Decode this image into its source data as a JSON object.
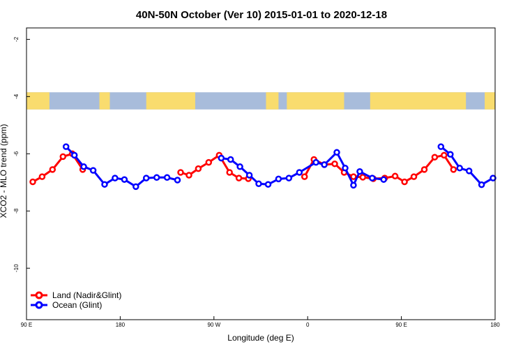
{
  "chart_data": {
    "type": "line",
    "title": "40N-50N October (Ver 10)   2015-01-01 to 2020-12-18",
    "xlabel": "Longitude (deg E)",
    "ylabel": "XCO2 - MLO trend (ppm)",
    "xlim": [
      90,
      540
    ],
    "ylim": [
      -11.8,
      -1.6
    ],
    "x_ticks": [
      {
        "value": 90,
        "label": "90 E"
      },
      {
        "value": 180,
        "label": "180"
      },
      {
        "value": 270,
        "label": "90 W"
      },
      {
        "value": 360,
        "label": "0"
      },
      {
        "value": 450,
        "label": "90 E"
      },
      {
        "value": 540,
        "label": "180"
      }
    ],
    "y_ticks": [
      {
        "value": -2,
        "label": "-2"
      },
      {
        "value": -4,
        "label": "-4"
      },
      {
        "value": -6,
        "label": "-6"
      },
      {
        "value": -8,
        "label": "-8"
      },
      {
        "value": -10,
        "label": "-10"
      }
    ],
    "map_band": {
      "y_top": -3.85,
      "y_bottom": -4.45,
      "land_color": "#f9dc6e",
      "ocean_color": "#a8bcdb"
    },
    "series": [
      {
        "name": "Land (Nadir&Glint)",
        "color": "#ff0000",
        "segments": [
          [
            [
              96,
              -6.98
            ],
            [
              105,
              -6.8
            ],
            [
              115,
              -6.55
            ],
            [
              125,
              -6.1
            ],
            [
              134,
              -6.0
            ],
            [
              144,
              -6.55
            ]
          ],
          [
            [
              238,
              -6.65
            ],
            [
              246,
              -6.75
            ],
            [
              255,
              -6.52
            ],
            [
              265,
              -6.3
            ],
            [
              275,
              -6.05
            ],
            [
              285,
              -6.65
            ],
            [
              294,
              -6.85
            ],
            [
              303,
              -6.87
            ]
          ],
          [
            [
              357,
              -6.8
            ],
            [
              366,
              -6.2
            ],
            [
              376,
              -6.38
            ],
            [
              386,
              -6.35
            ],
            [
              395,
              -6.65
            ],
            [
              404,
              -6.8
            ],
            [
              413,
              -6.82
            ],
            [
              423,
              -6.87
            ],
            [
              434,
              -6.85
            ],
            [
              444,
              -6.78
            ],
            [
              453,
              -6.98
            ],
            [
              462,
              -6.8
            ],
            [
              472,
              -6.55
            ],
            [
              482,
              -6.12
            ],
            [
              491,
              -6.05
            ],
            [
              500,
              -6.55
            ]
          ]
        ]
      },
      {
        "name": "Ocean (Glint)",
        "color": "#0000ff",
        "segments": [
          [
            [
              128,
              -5.75
            ],
            [
              136,
              -6.05
            ],
            [
              145,
              -6.45
            ],
            [
              154,
              -6.58
            ],
            [
              165,
              -7.07
            ],
            [
              175,
              -6.85
            ],
            [
              184,
              -6.9
            ],
            [
              195,
              -7.15
            ],
            [
              205,
              -6.85
            ],
            [
              215,
              -6.83
            ],
            [
              225,
              -6.83
            ],
            [
              235,
              -6.92
            ]
          ],
          [
            [
              277,
              -6.15
            ],
            [
              286,
              -6.2
            ],
            [
              295,
              -6.45
            ],
            [
              304,
              -6.75
            ],
            [
              313,
              -7.05
            ],
            [
              322,
              -7.07
            ],
            [
              332,
              -6.88
            ],
            [
              342,
              -6.85
            ],
            [
              352,
              -6.65
            ],
            [
              368,
              -6.3
            ],
            [
              376,
              -6.38
            ],
            [
              388,
              -5.95
            ],
            [
              396,
              -6.5
            ],
            [
              404,
              -7.1
            ],
            [
              410,
              -6.62
            ],
            [
              422,
              -6.85
            ],
            [
              433,
              -6.9
            ]
          ],
          [
            [
              488,
              -5.75
            ],
            [
              497,
              -6.02
            ],
            [
              506,
              -6.5
            ],
            [
              515,
              -6.6
            ],
            [
              527,
              -7.08
            ],
            [
              538,
              -6.85
            ]
          ]
        ]
      }
    ],
    "legend": {
      "position": "bottom-left",
      "entries": [
        "Land (Nadir&Glint)",
        "Ocean (Glint)"
      ]
    }
  }
}
